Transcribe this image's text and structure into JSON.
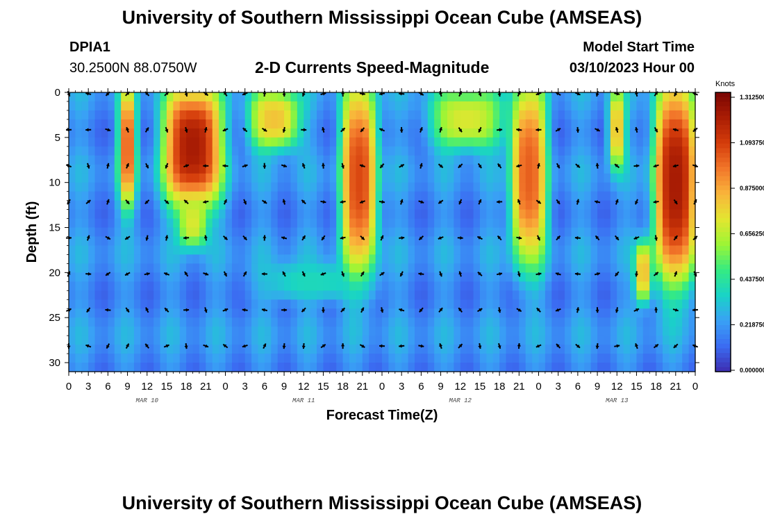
{
  "header": {
    "title": "University of Southern Mississippi Ocean Cube (AMSEAS)",
    "station_id": "DPIA1",
    "station_coords": "30.2500N  88.0750W",
    "plot_name": "2-D Currents Speed-Magnitude",
    "model_start_label": "Model Start Time",
    "model_start_value": "03/10/2023 Hour 00"
  },
  "footer_title": "University of Southern Mississippi Ocean Cube (AMSEAS)",
  "chart_data": {
    "type": "heatmap",
    "title": "2-D Currents Speed-Magnitude",
    "xlabel": "Forecast Time(Z)",
    "ylabel": "Depth (ft)",
    "x_hours_range": [
      0,
      96
    ],
    "ylim": [
      0,
      31
    ],
    "y_ticks": [
      "0",
      "5",
      "10",
      "15",
      "20",
      "25",
      "30"
    ],
    "x_tick_labels": [
      "0",
      "3",
      "6",
      "9",
      "12",
      "15",
      "18",
      "21",
      "0",
      "3",
      "6",
      "9",
      "12",
      "15",
      "18",
      "21",
      "0",
      "3",
      "6",
      "9",
      "12",
      "15",
      "18",
      "21",
      "0",
      "3",
      "6",
      "9",
      "12",
      "15",
      "18",
      "21",
      "0"
    ],
    "date_labels": [
      "MAR 10",
      "MAR 11",
      "MAR 12",
      "MAR 13"
    ],
    "colorbar": {
      "unit": "Knots",
      "range": [
        0.0,
        1.3125
      ],
      "tick_labels": [
        "1.312500",
        "1.093750",
        "0.875000",
        "0.656250",
        "0.437500",
        "0.218750",
        "0.000000"
      ]
    },
    "speed_features_knots": [
      {
        "hours": [
          8,
          10
        ],
        "depth_ft": [
          0,
          12
        ],
        "speed": 1.0
      },
      {
        "hours": [
          15,
          23
        ],
        "depth_ft": [
          0,
          12
        ],
        "speed": 1.2
      },
      {
        "hours": [
          17,
          21
        ],
        "depth_ft": [
          12,
          17
        ],
        "speed": 0.7
      },
      {
        "hours": [
          28,
          35
        ],
        "depth_ft": [
          0,
          6
        ],
        "speed": 0.8
      },
      {
        "hours": [
          42,
          47
        ],
        "depth_ft": [
          0,
          19
        ],
        "speed": 1.05
      },
      {
        "hours": [
          56,
          66
        ],
        "depth_ft": [
          0,
          6
        ],
        "speed": 0.7
      },
      {
        "hours": [
          68,
          73
        ],
        "depth_ft": [
          0,
          18
        ],
        "speed": 1.0
      },
      {
        "hours": [
          83,
          85
        ],
        "depth_ft": [
          0,
          8
        ],
        "speed": 0.8
      },
      {
        "hours": [
          87,
          89
        ],
        "depth_ft": [
          17,
          23
        ],
        "speed": 0.8
      },
      {
        "hours": [
          90,
          96
        ],
        "depth_ft": [
          0,
          20
        ],
        "speed": 1.2
      },
      {
        "hours": [
          30,
          45
        ],
        "depth_ft": [
          19,
          23
        ],
        "speed": 0.38
      }
    ],
    "arrow_depths_ft": [
      0,
      4,
      8,
      12,
      16,
      20,
      24,
      28
    ],
    "arrow_hours_step": 3
  },
  "colors": {
    "ramp": [
      "#3d2cb0",
      "#3b6cf2",
      "#39a1f5",
      "#19d3c7",
      "#35eb82",
      "#9cf535",
      "#e3e630",
      "#f9b53b",
      "#f2762a",
      "#d43c0b",
      "#aa1d04",
      "#7a0503"
    ]
  }
}
